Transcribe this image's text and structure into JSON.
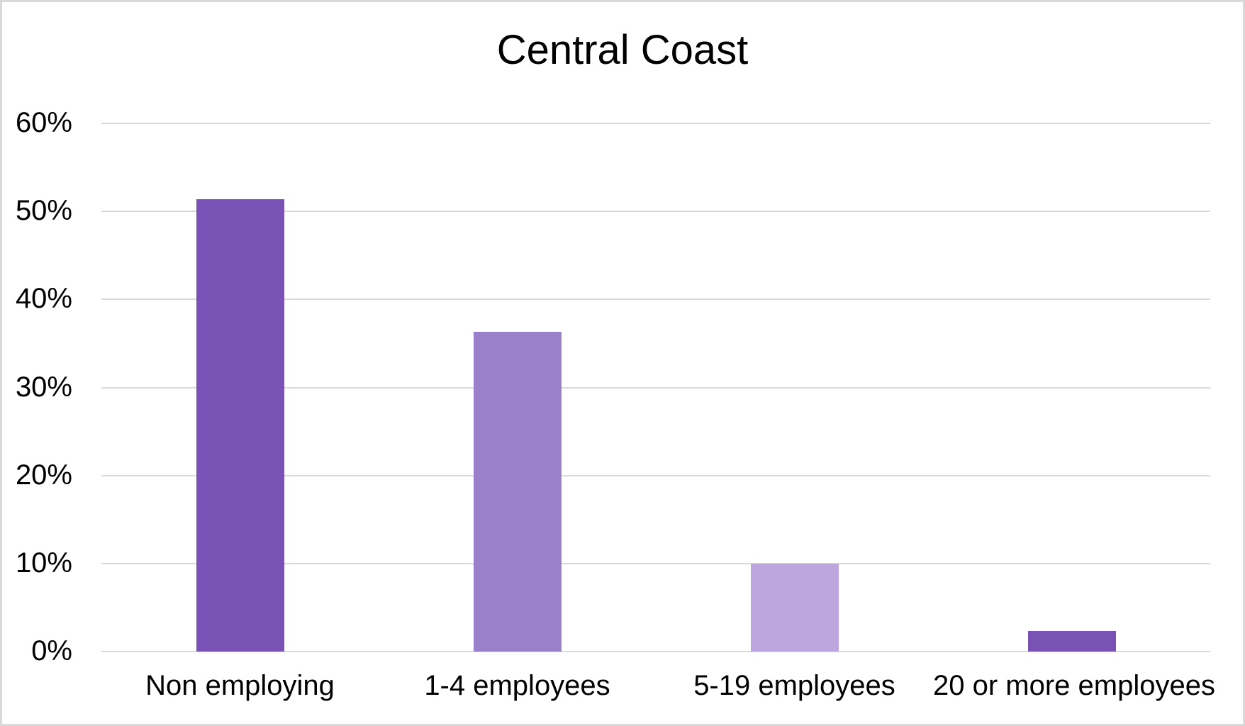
{
  "frame": {
    "background": "#FFFFFF",
    "border_color": "#D9D9D9"
  },
  "chart_data": {
    "type": "bar",
    "title": "Central Coast",
    "categories": [
      "Non employing",
      "1-4 employees",
      "5-19 employees",
      "20 or more employees"
    ],
    "values": [
      51.4,
      36.3,
      10.0,
      2.3
    ],
    "unit": "%",
    "bar_colors": [
      "#7A52B5",
      "#9A7FCB",
      "#BCA6DD",
      "#7A52B5"
    ],
    "ylim": [
      0,
      60
    ],
    "ytick_step": 10,
    "ytick_labels": [
      "0%",
      "10%",
      "20%",
      "30%",
      "40%",
      "50%",
      "60%"
    ],
    "grid": true,
    "gridline_color": "#D9D9D9",
    "xlabel": "",
    "ylabel": "",
    "legend": "none",
    "text_color": "#000000"
  }
}
